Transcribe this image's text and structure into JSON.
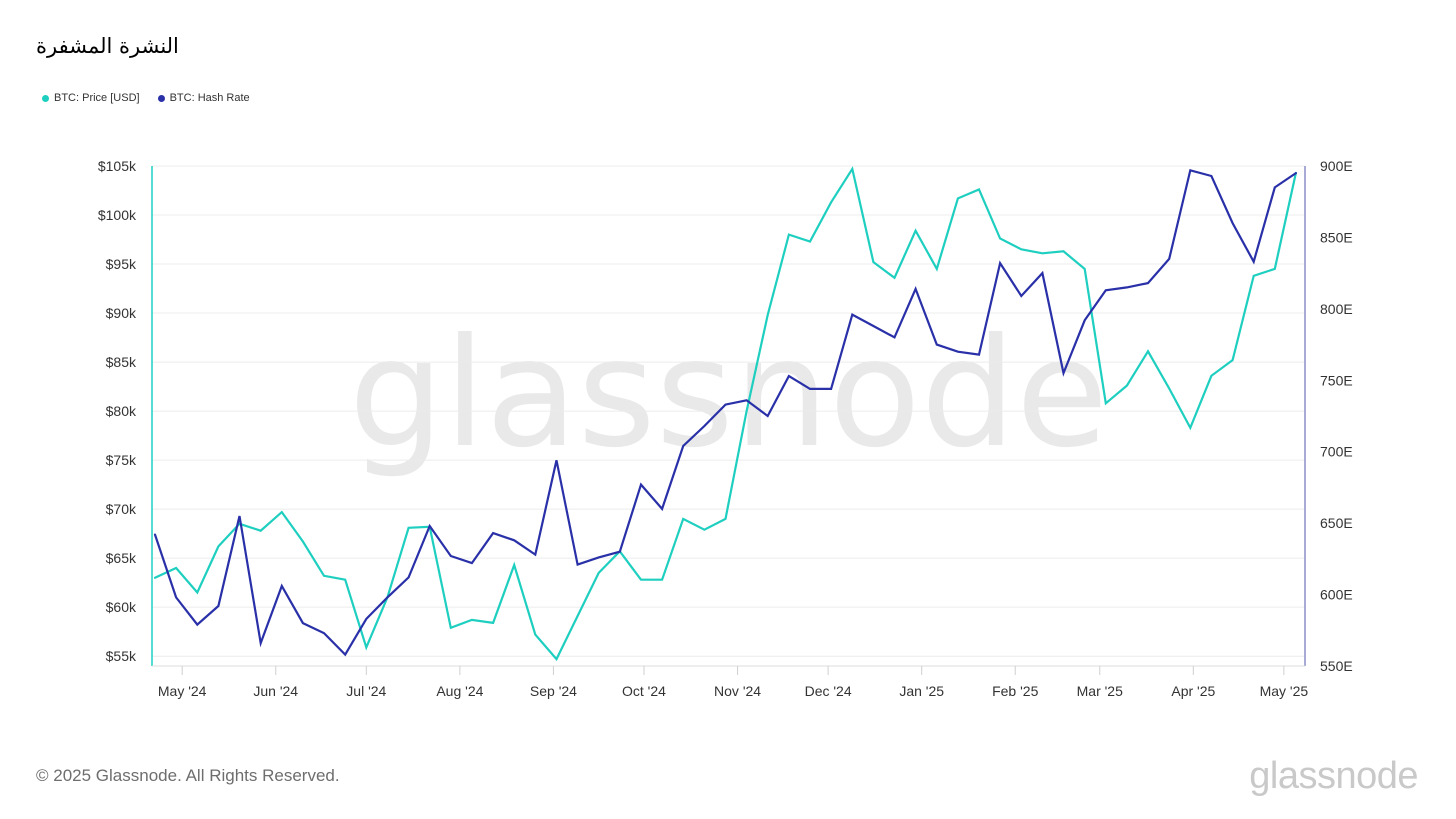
{
  "title": "النشرة المشفرة",
  "footer": {
    "copyright": "© 2025 Glassnode. All Rights Reserved.",
    "brand": "glassnode"
  },
  "watermark": "glassnode",
  "colors": {
    "price": "#1ecfc0",
    "hash": "#2930a8",
    "grid": "#ececec"
  },
  "chart_data": {
    "type": "line",
    "x_tick_labels": [
      "May '24",
      "Jun '24",
      "Jul '24",
      "Aug '24",
      "Sep '24",
      "Oct '24",
      "Nov '24",
      "Dec '24",
      "Jan '25",
      "Feb '25",
      "Mar '25",
      "Apr '25",
      "May '25"
    ],
    "x_range": [
      "2024-04-21",
      "2025-05-08"
    ],
    "x": [
      "2024-04-22",
      "2024-04-29",
      "2024-05-06",
      "2024-05-13",
      "2024-05-20",
      "2024-05-27",
      "2024-06-03",
      "2024-06-10",
      "2024-06-17",
      "2024-06-24",
      "2024-07-01",
      "2024-07-08",
      "2024-07-15",
      "2024-07-22",
      "2024-07-29",
      "2024-08-05",
      "2024-08-12",
      "2024-08-19",
      "2024-08-26",
      "2024-09-02",
      "2024-09-09",
      "2024-09-16",
      "2024-09-23",
      "2024-09-30",
      "2024-10-07",
      "2024-10-14",
      "2024-10-21",
      "2024-10-28",
      "2024-11-04",
      "2024-11-11",
      "2024-11-18",
      "2024-11-25",
      "2024-12-02",
      "2024-12-09",
      "2024-12-16",
      "2024-12-23",
      "2024-12-30",
      "2025-01-06",
      "2025-01-13",
      "2025-01-20",
      "2025-01-27",
      "2025-02-03",
      "2025-02-10",
      "2025-02-17",
      "2025-02-24",
      "2025-03-03",
      "2025-03-10",
      "2025-03-17",
      "2025-03-24",
      "2025-03-31",
      "2025-04-07",
      "2025-04-14",
      "2025-04-21",
      "2025-04-28",
      "2025-05-05"
    ],
    "series": [
      {
        "name": "BTC: Price [USD]",
        "axis": "left",
        "values": [
          63000,
          64000,
          61500,
          66200,
          68500,
          67800,
          69700,
          66700,
          63200,
          62800,
          55900,
          61000,
          68100,
          68200,
          57900,
          58700,
          58400,
          64300,
          57200,
          54700,
          59100,
          63500,
          65700,
          62800,
          62800,
          69000,
          67900,
          69000,
          80000,
          89800,
          98000,
          97300,
          101300,
          104700,
          95200,
          93600,
          98400,
          94500,
          101700,
          102600,
          97600,
          96500,
          96100,
          96300,
          94500,
          80800,
          82600,
          86100,
          82300,
          78300,
          83600,
          85200,
          93800,
          94500,
          104300
        ]
      },
      {
        "name": "BTC: Hash Rate",
        "axis": "right",
        "values": [
          642,
          598,
          579,
          592,
          655,
          566,
          606,
          580,
          573,
          558,
          583,
          598,
          612,
          648,
          627,
          622,
          643,
          638,
          628,
          694,
          621,
          626,
          630,
          677,
          660,
          704,
          718,
          733,
          736,
          725,
          753,
          744,
          744,
          796,
          788,
          780,
          814,
          775,
          770,
          768,
          832,
          809,
          825,
          755,
          792,
          813,
          815,
          818,
          835,
          897,
          893,
          860,
          833,
          885,
          895
        ]
      }
    ],
    "y_left": {
      "ylim": [
        54000,
        105000
      ],
      "ticks": [
        55000,
        60000,
        65000,
        70000,
        75000,
        80000,
        85000,
        90000,
        95000,
        100000,
        105000
      ],
      "tick_labels": [
        "$55k",
        "$60k",
        "$65k",
        "$70k",
        "$75k",
        "$80k",
        "$85k",
        "$90k",
        "$95k",
        "$100k",
        "$105k"
      ]
    },
    "y_right": {
      "ylim": [
        550,
        900
      ],
      "ticks": [
        550,
        600,
        650,
        700,
        750,
        800,
        850,
        900
      ],
      "tick_labels": [
        "550E",
        "600E",
        "650E",
        "700E",
        "750E",
        "800E",
        "850E",
        "900E"
      ]
    },
    "grid": true,
    "legend_position": "top-left"
  }
}
